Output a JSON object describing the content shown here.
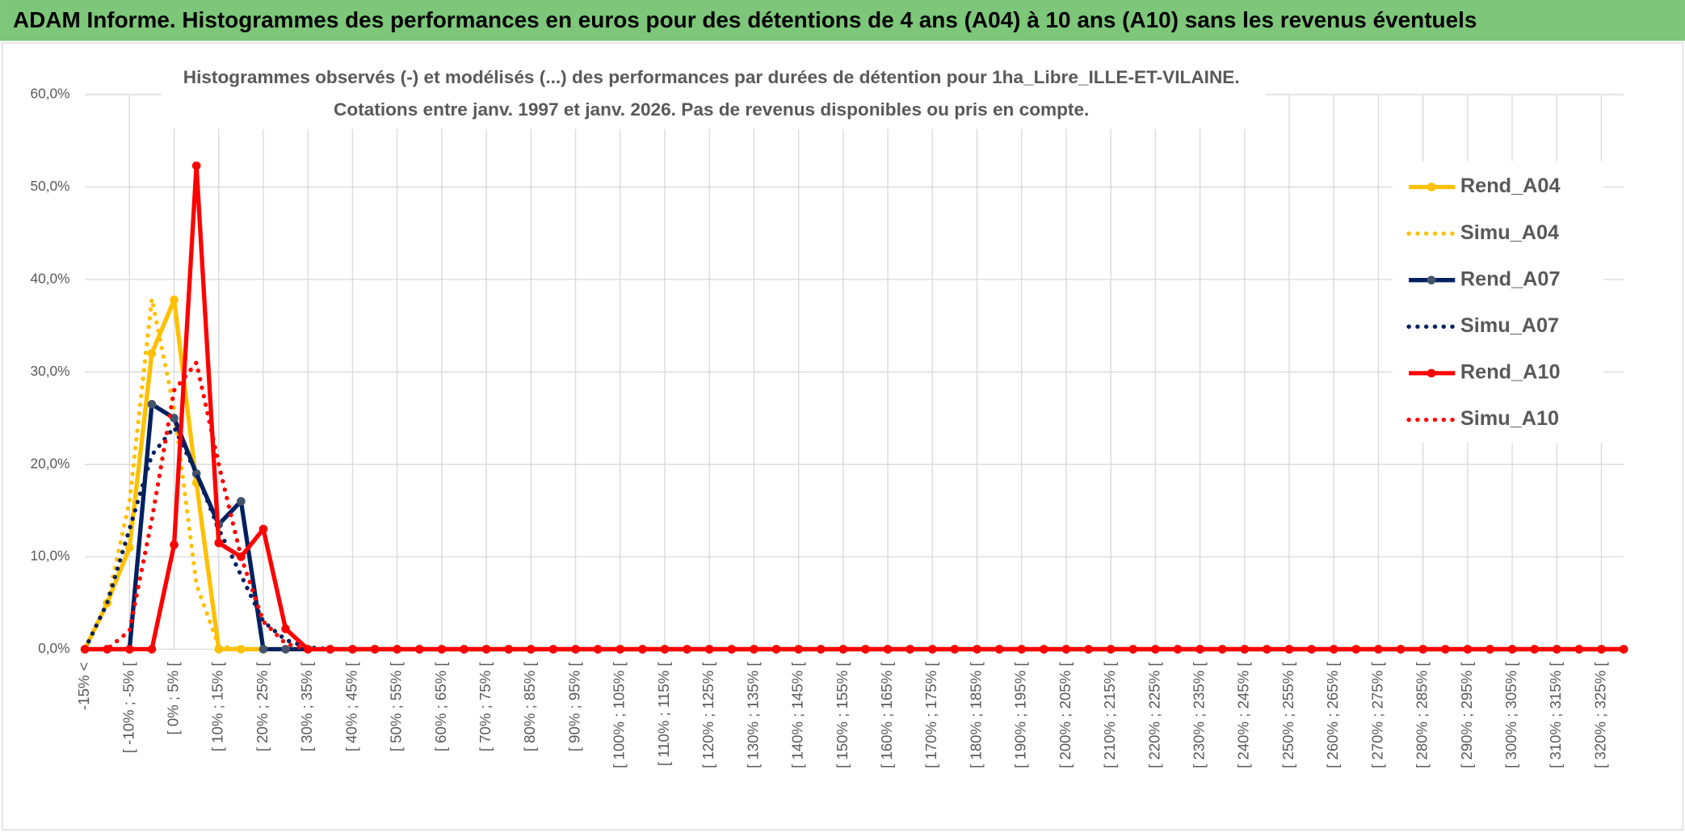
{
  "header": {
    "title": "ADAM Informe. Histogrammes des performances en euros pour des détentions de 4 ans (A04) à 10 ans (A10) sans les revenus éventuels"
  },
  "chart_data": {
    "type": "line",
    "title": "Histogrammes observés (-) et modélisés (...) des performances par durées de détention pour 1ha_Libre_ILLE-ET-VILAINE.",
    "subtitle": "Cotations entre janv. 1997 et janv. 2026. Pas de revenus disponibles ou pris en compte.",
    "categories": [
      "-15% <",
      null,
      "[ -10% ; -5% [",
      null,
      "[ 0% ; 5% [",
      null,
      "[ 10% ; 15% [",
      null,
      "[ 20% ; 25% [",
      null,
      "[ 30% ; 35% [",
      null,
      "[ 40% ; 45% [",
      null,
      "[ 50% ; 55% [",
      null,
      "[ 60% ; 65% [",
      null,
      "[ 70% ; 75% [",
      null,
      "[ 80% ; 85% [",
      null,
      "[ 90% ; 95% [",
      null,
      "[ 100% ; 105% [",
      null,
      "[ 110% ; 115% [",
      null,
      "[ 120% ; 125% [",
      null,
      "[ 130% ; 135% [",
      null,
      "[ 140% ; 145% [",
      null,
      "[ 150% ; 155% [",
      null,
      "[ 160% ; 165% [",
      null,
      "[ 170% ; 175% [",
      null,
      "[ 180% ; 185% [",
      null,
      "[ 190% ; 195% [",
      null,
      "[ 200% ; 205% [",
      null,
      "[ 210% ; 215% [",
      null,
      "[ 220% ; 225% [",
      null,
      "[ 230% ; 235% [",
      null,
      "[ 240% ; 245% [",
      null,
      "[ 250% ; 255% [",
      null,
      "[ 260% ; 265% [",
      null,
      "[ 270% ; 275% [",
      null,
      "[ 280% ; 285% [",
      null,
      "[ 290% ; 295% [",
      null,
      "[ 300% ; 305% [",
      null,
      "[ 310% ; 315% [",
      null,
      "[ 320% ; 325% [",
      null
    ],
    "series": [
      {
        "name": "Rend_A04",
        "color": "#ffc000",
        "line_style": "solid",
        "markers": true,
        "values": [
          0,
          5,
          11,
          32,
          37.8,
          18,
          0,
          0,
          0,
          0,
          0,
          0,
          0,
          0,
          0,
          0,
          0,
          0,
          0,
          0,
          0,
          0,
          0,
          0,
          0,
          0,
          0,
          0,
          0,
          0,
          0,
          0,
          0,
          0,
          0,
          0,
          0,
          0,
          0,
          0,
          0,
          0,
          0,
          0,
          0,
          0,
          0,
          0,
          0,
          0,
          0,
          0,
          0,
          0,
          0,
          0,
          0,
          0,
          0,
          0,
          0,
          0,
          0,
          0,
          0,
          0,
          0,
          0,
          0,
          0
        ]
      },
      {
        "name": "Simu_A04",
        "color": "#ffc000",
        "line_style": "dotted",
        "markers": false,
        "values": [
          0,
          5,
          16,
          37.9,
          26,
          7,
          0.3,
          0,
          0,
          0,
          0,
          0,
          0,
          0,
          0,
          0,
          0,
          0,
          0,
          0,
          0,
          0,
          0,
          0,
          0,
          0,
          0,
          0,
          0,
          0,
          0,
          0,
          0,
          0,
          0,
          0,
          0,
          0,
          0,
          0,
          0,
          0,
          0,
          0,
          0,
          0,
          0,
          0,
          0,
          0,
          0,
          0,
          0,
          0,
          0,
          0,
          0,
          0,
          0,
          0,
          0,
          0,
          0,
          0,
          0,
          0,
          0,
          0,
          0,
          0
        ]
      },
      {
        "name": "Rend_A07",
        "color": "#002060",
        "line_style": "solid",
        "markers": true,
        "values": [
          0,
          0,
          0,
          26.5,
          25,
          19,
          13.5,
          16,
          0,
          0,
          0,
          0,
          0,
          0,
          0,
          0,
          0,
          0,
          0,
          0,
          0,
          0,
          0,
          0,
          0,
          0,
          0,
          0,
          0,
          0,
          0,
          0,
          0,
          0,
          0,
          0,
          0,
          0,
          0,
          0,
          0,
          0,
          0,
          0,
          0,
          0,
          0,
          0,
          0,
          0,
          0,
          0,
          0,
          0,
          0,
          0,
          0,
          0,
          0,
          0,
          0,
          0,
          0,
          0,
          0,
          0,
          0,
          0,
          0,
          0
        ]
      },
      {
        "name": "Simu_A07",
        "color": "#002060",
        "line_style": "dotted",
        "markers": false,
        "values": [
          0,
          5,
          13,
          21,
          24,
          19,
          13,
          8,
          3,
          1,
          0.2,
          0,
          0,
          0,
          0,
          0,
          0,
          0,
          0,
          0,
          0,
          0,
          0,
          0,
          0,
          0,
          0,
          0,
          0,
          0,
          0,
          0,
          0,
          0,
          0,
          0,
          0,
          0,
          0,
          0,
          0,
          0,
          0,
          0,
          0,
          0,
          0,
          0,
          0,
          0,
          0,
          0,
          0,
          0,
          0,
          0,
          0,
          0,
          0,
          0,
          0,
          0,
          0,
          0,
          0,
          0,
          0,
          0,
          0,
          0
        ]
      },
      {
        "name": "Rend_A10",
        "color": "#ff0000",
        "line_style": "solid",
        "markers": true,
        "values": [
          0,
          0,
          0,
          0,
          11.3,
          52.3,
          11.5,
          10,
          13,
          2.2,
          0,
          0,
          0,
          0,
          0,
          0,
          0,
          0,
          0,
          0,
          0,
          0,
          0,
          0,
          0,
          0,
          0,
          0,
          0,
          0,
          0,
          0,
          0,
          0,
          0,
          0,
          0,
          0,
          0,
          0,
          0,
          0,
          0,
          0,
          0,
          0,
          0,
          0,
          0,
          0,
          0,
          0,
          0,
          0,
          0,
          0,
          0,
          0,
          0,
          0,
          0,
          0,
          0,
          0,
          0,
          0,
          0,
          0,
          0,
          0
        ]
      },
      {
        "name": "Simu_A10",
        "color": "#ff0000",
        "line_style": "dotted",
        "markers": false,
        "values": [
          0,
          0,
          2,
          14,
          28,
          31,
          20,
          10,
          3,
          0.6,
          0,
          0,
          0,
          0,
          0,
          0,
          0,
          0,
          0,
          0,
          0,
          0,
          0,
          0,
          0,
          0,
          0,
          0,
          0,
          0,
          0,
          0,
          0,
          0,
          0,
          0,
          0,
          0,
          0,
          0,
          0,
          0,
          0,
          0,
          0,
          0,
          0,
          0,
          0,
          0,
          0,
          0,
          0,
          0,
          0,
          0,
          0,
          0,
          0,
          0,
          0,
          0,
          0,
          0,
          0,
          0,
          0,
          0,
          0,
          0
        ]
      }
    ],
    "ylim": [
      0,
      60
    ],
    "yticks": [
      {
        "value": 0,
        "label": "0,0%"
      },
      {
        "value": 10,
        "label": "10,0%"
      },
      {
        "value": 20,
        "label": "20,0%"
      },
      {
        "value": 30,
        "label": "30,0%"
      },
      {
        "value": 40,
        "label": "40,0%"
      },
      {
        "value": 50,
        "label": "50,0%"
      },
      {
        "value": 60,
        "label": "60,0%"
      }
    ],
    "grid": true,
    "legend": "right"
  }
}
